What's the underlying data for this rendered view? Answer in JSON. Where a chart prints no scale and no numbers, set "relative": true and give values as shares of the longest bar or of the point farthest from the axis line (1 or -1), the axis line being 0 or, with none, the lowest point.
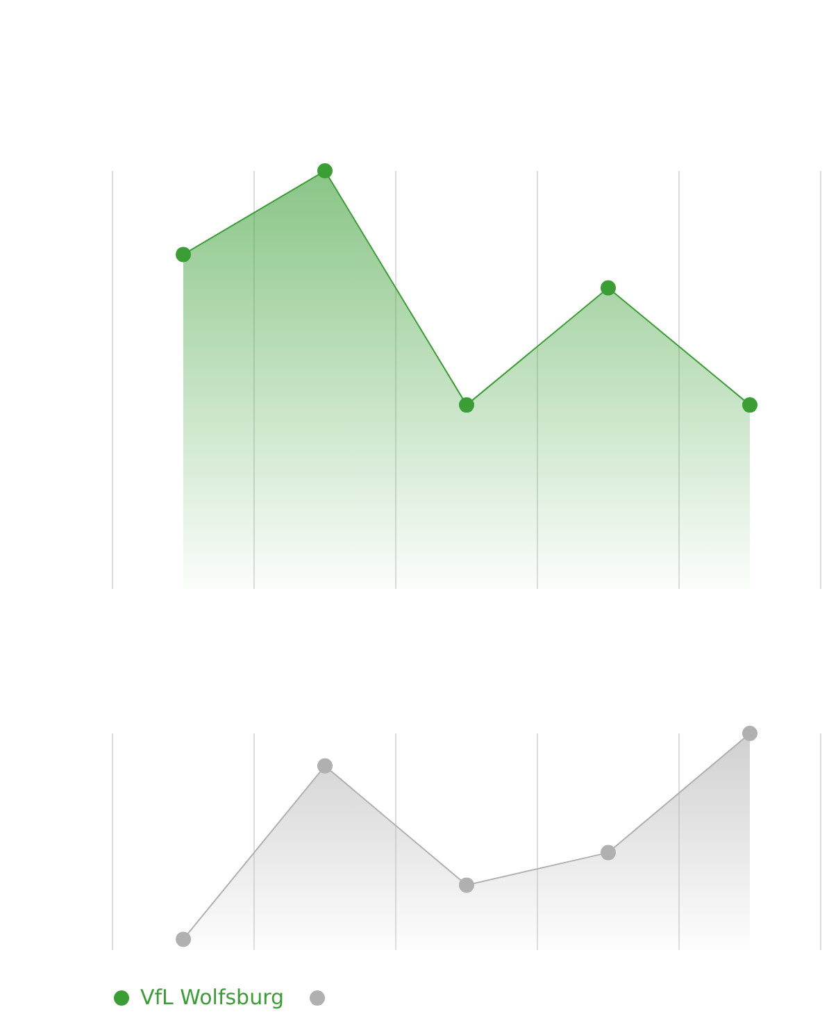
{
  "chart_data": [
    {
      "type": "area",
      "relative": true,
      "categories": [
        null,
        null,
        null,
        null,
        null
      ],
      "grid": "x",
      "marker": "circle",
      "legend": "bottom",
      "series": [
        {
          "name": "VfL Wolfsburg",
          "color": "#3a9e35",
          "values": [
            0.8,
            1,
            0.44,
            0.72,
            0.44
          ]
        }
      ]
    },
    {
      "type": "area",
      "relative": true,
      "categories": [
        null,
        null,
        null,
        null,
        null
      ],
      "grid": "x",
      "marker": "circle",
      "series": [
        {
          "color": "#b0b0b0",
          "values": [
            0.05,
            0.85,
            0.3,
            0.45,
            1
          ]
        }
      ]
    }
  ]
}
